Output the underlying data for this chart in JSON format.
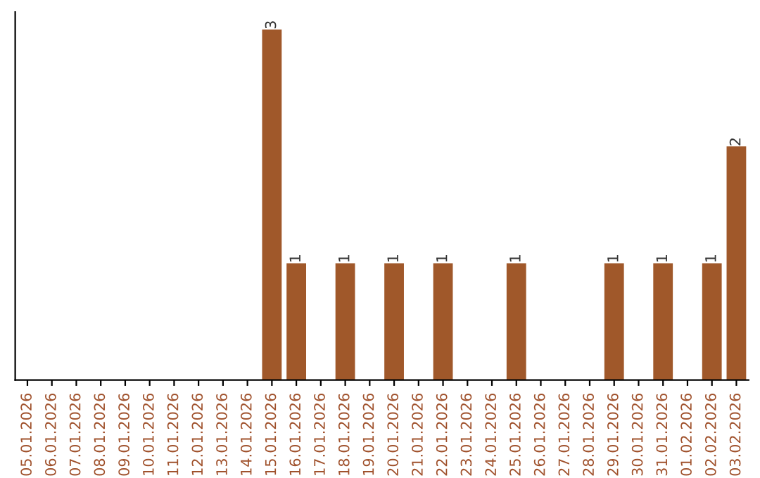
{
  "chart_data": {
    "type": "bar",
    "categories": [
      "05.01.2026",
      "06.01.2026",
      "07.01.2026",
      "08.01.2026",
      "09.01.2026",
      "10.01.2026",
      "11.01.2026",
      "12.01.2026",
      "13.01.2026",
      "14.01.2026",
      "15.01.2026",
      "16.01.2026",
      "17.01.2026",
      "18.01.2026",
      "19.01.2026",
      "20.01.2026",
      "21.01.2026",
      "22.01.2026",
      "23.01.2026",
      "24.01.2026",
      "25.01.2026",
      "26.01.2026",
      "27.01.2026",
      "28.01.2026",
      "29.01.2026",
      "30.01.2026",
      "31.01.2026",
      "01.02.2026",
      "02.02.2026",
      "03.02.2026"
    ],
    "values": [
      0,
      0,
      0,
      0,
      0,
      0,
      0,
      0,
      0,
      0,
      3,
      1,
      0,
      1,
      0,
      1,
      0,
      1,
      0,
      0,
      1,
      0,
      0,
      0,
      1,
      0,
      1,
      0,
      1,
      2
    ],
    "value_labels": [
      null,
      null,
      null,
      null,
      null,
      null,
      null,
      null,
      null,
      null,
      "3",
      "1",
      null,
      "1",
      null,
      "1",
      null,
      "1",
      null,
      null,
      "1",
      null,
      null,
      null,
      "1",
      null,
      "1",
      null,
      "1",
      "2"
    ],
    "color": "#a0582a",
    "tick_labels": "x",
    "grid": false,
    "legend": false
  }
}
